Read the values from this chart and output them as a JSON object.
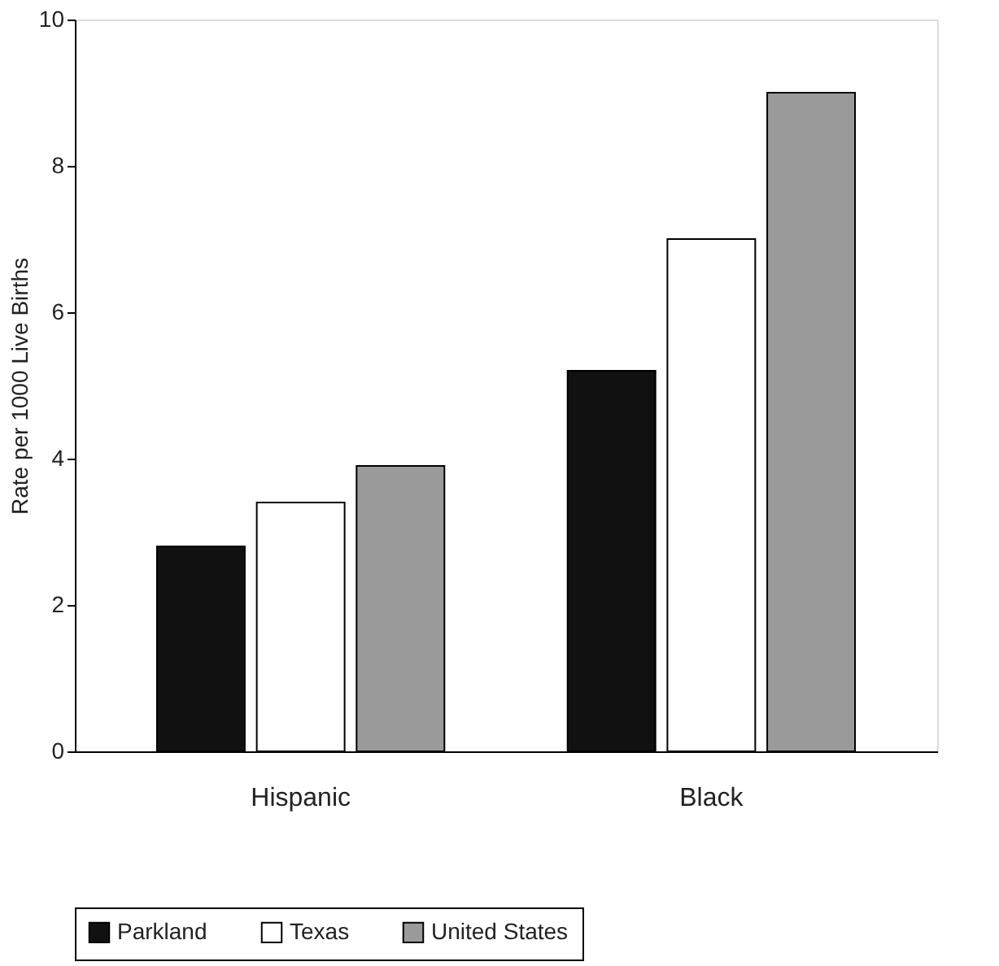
{
  "chart_data": {
    "type": "bar",
    "ylabel": "Rate per 1000 Live Births",
    "categories": [
      "Hispanic",
      "Black"
    ],
    "series": [
      {
        "name": "Parkland",
        "color": "#111111",
        "values": [
          2.8,
          5.2
        ]
      },
      {
        "name": "Texas",
        "color": "#ffffff",
        "values": [
          3.4,
          7.0
        ]
      },
      {
        "name": "United States",
        "color": "#9a9a9a",
        "values": [
          3.9,
          9.0
        ]
      }
    ],
    "ylim": [
      0,
      10
    ],
    "yticks": [
      0,
      2,
      4,
      6,
      8,
      10
    ],
    "grid": false,
    "legend": "bottom"
  }
}
